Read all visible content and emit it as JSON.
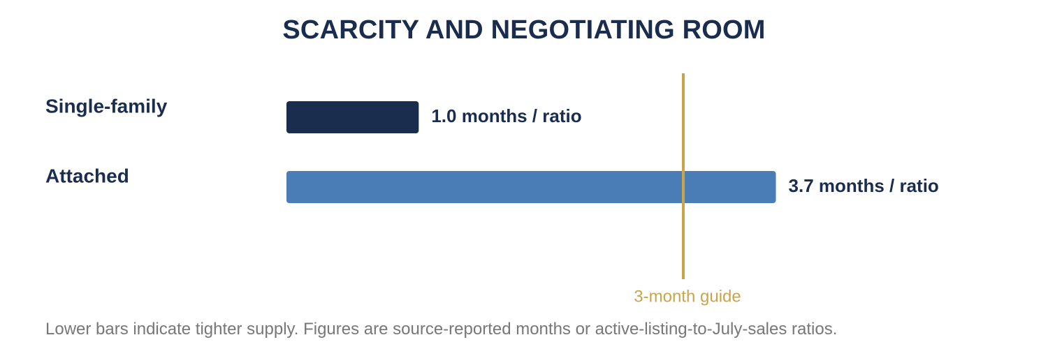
{
  "chart_data": {
    "type": "bar",
    "orientation": "horizontal",
    "title": "SCARCITY AND NEGOTIATING ROOM",
    "categories": [
      "Single-family",
      "Attached"
    ],
    "values": [
      1.0,
      3.7
    ],
    "value_labels": [
      "1.0 months / ratio",
      "3.7 months / ratio"
    ],
    "bar_colors": [
      "#1b2d4f",
      "#4a7db5"
    ],
    "xlim": [
      0,
      4.5
    ],
    "grid": false,
    "reference_line": {
      "value": 3.0,
      "label": "3-month guide",
      "color": "#c9a54a"
    },
    "footnote": "Lower bars indicate tighter supply. Figures are source-reported months or active-listing-to-July-sales ratios."
  },
  "colors": {
    "title": "#1b2d4f",
    "category_label": "#1b2d4f",
    "value_label": "#1b2d4f",
    "footnote": "#777777"
  }
}
